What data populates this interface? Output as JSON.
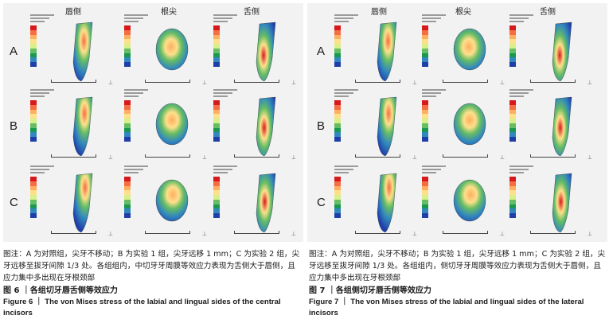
{
  "figure6": {
    "columns": [
      "唇侧",
      "根尖",
      "舌侧"
    ],
    "rows": [
      "A",
      "B",
      "C"
    ],
    "note": "图注：A 为对照组，尖牙不移动；B 为实验 1 组，尖牙远移 1 mm；C 为实验 2 组，尖牙远移至拔牙间隙 1/3 处。各组组内，中切牙牙周膜等效应力表现为舌侧大于唇侧，且应力集中多出现在牙根颈部",
    "title_cn": "图 6 ｜各组切牙唇舌侧等效应力",
    "title_en": "Figure 6 ｜ The von Mises stress of the labial and lingual sides of the central incisors"
  },
  "figure7": {
    "columns": [
      "唇侧",
      "根尖",
      "舌侧"
    ],
    "rows": [
      "A",
      "B",
      "C"
    ],
    "note": "图注：A 为对照组，尖牙不移动；B 为实验 1 组，尖牙远移 1 mm；C 为实验 2 组，尖牙远移至拔牙间隙 1/3 处。各组组内，侧切牙牙周膜等效应力表现为舌侧大于唇侧，且应力集中多出现在牙根颈部",
    "title_cn": "图 7 ｜各组侧切牙唇舌侧等效应力",
    "title_en": "Figure 7 ｜ The von Mises stress of the labial and lingual sides of the lateral incisors"
  },
  "colors": {
    "scale": [
      "#d7191c",
      "#f46d43",
      "#fdae61",
      "#fee08b",
      "#d9ef8b",
      "#66bd63",
      "#1a9850",
      "#3288bd",
      "#1e3fa8"
    ],
    "panel_bg": "#f2f2f2"
  }
}
